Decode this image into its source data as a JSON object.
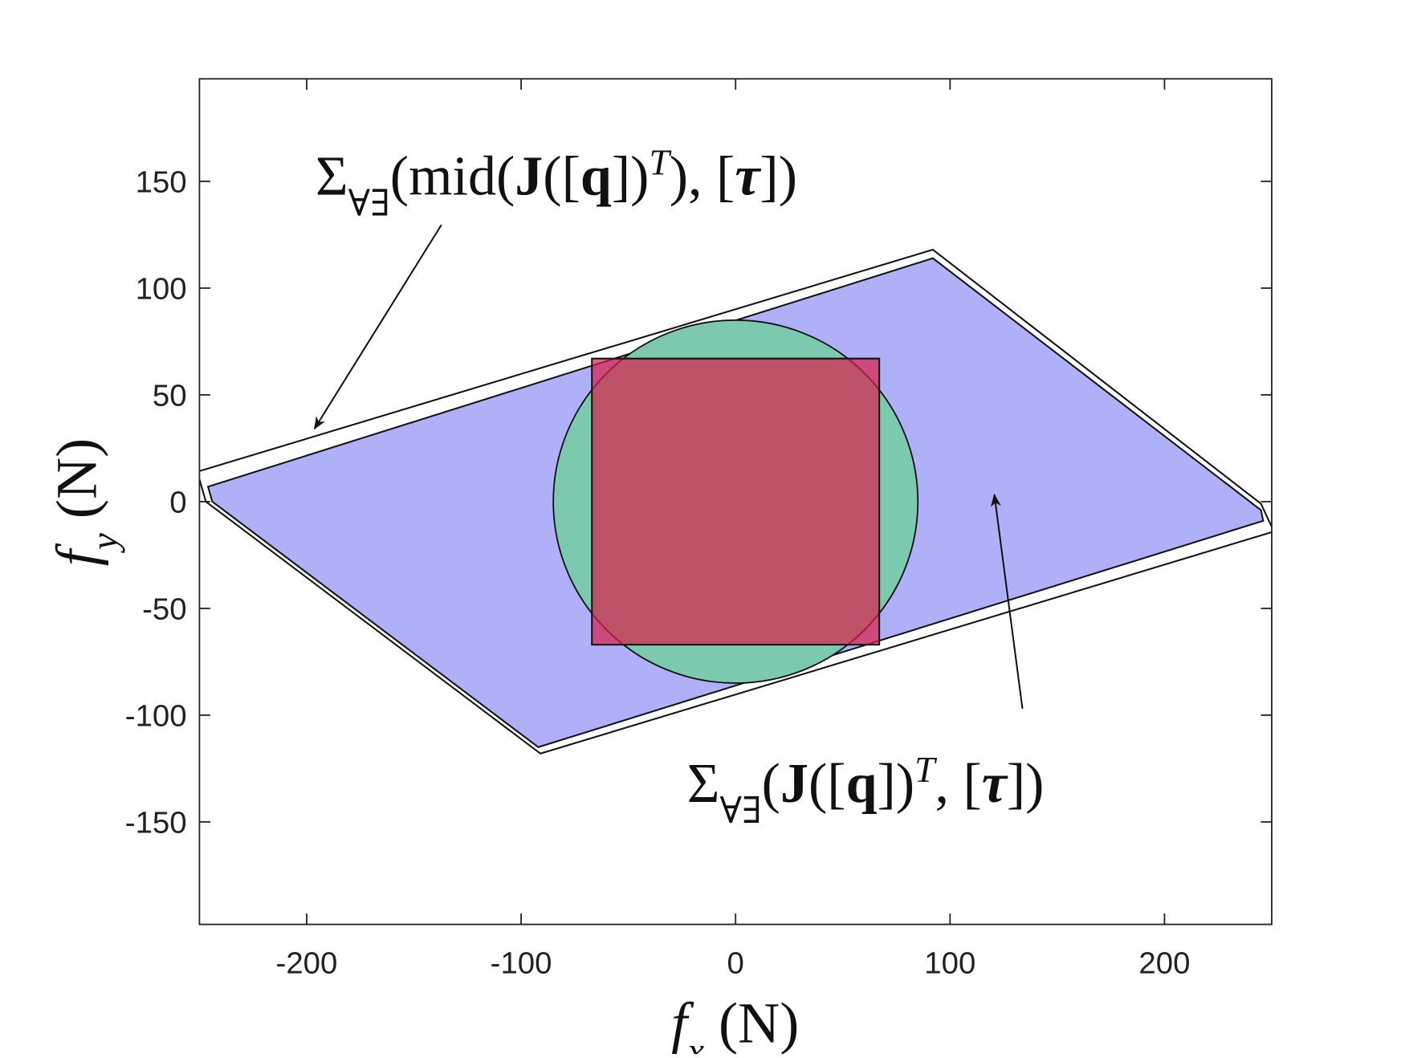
{
  "chart_data": {
    "type": "shapes",
    "xlim": [
      -250,
      250
    ],
    "ylim": [
      -198,
      198
    ],
    "xticks": [
      -200,
      -100,
      0,
      100,
      200
    ],
    "yticks": [
      -150,
      -100,
      -50,
      0,
      50,
      100,
      150
    ],
    "x_label": [
      {
        "text": "f",
        "style": "italic"
      },
      {
        "text": "x",
        "style": "italic-sub"
      },
      {
        "text": " (N)",
        "style": "normal"
      }
    ],
    "y_label": [
      {
        "text": "f",
        "style": "italic"
      },
      {
        "text": "y",
        "style": "italic-sub"
      },
      {
        "text": " (N)",
        "style": "normal"
      }
    ],
    "series": [
      {
        "shape": "polygon",
        "color": "#ffffff",
        "alpha": 1,
        "x": [
          92,
          245,
          251,
          -91,
          -247,
          -251
        ],
        "y": [
          118,
          -1,
          -14,
          -118,
          0,
          14
        ]
      },
      {
        "shape": "polygon",
        "color": "#b0b0f8",
        "alpha": 1,
        "x": [
          92,
          245,
          246,
          -92,
          -244,
          -246
        ],
        "y": [
          114,
          -4,
          -9,
          -115,
          0,
          7
        ]
      },
      {
        "shape": "circle",
        "color": "#7cc9b0",
        "alpha": 1,
        "cx": 0,
        "cy": 0,
        "r": 85
      },
      {
        "shape": "polygon",
        "color": "#d81e4a",
        "alpha": 0.7,
        "x": [
          -67,
          67,
          67,
          -67
        ],
        "y": [
          67,
          67,
          -67,
          -67
        ]
      }
    ],
    "annotations": [
      [
        {
          "text": "Σ",
          "style": "normal"
        },
        {
          "text": "∀∃",
          "style": "sub"
        },
        {
          "text": "(mid(",
          "style": "normal"
        },
        {
          "text": "J",
          "style": "bold"
        },
        {
          "text": "([",
          "style": "normal"
        },
        {
          "text": "q",
          "style": "bold"
        },
        {
          "text": "])",
          "style": "normal"
        },
        {
          "text": "T",
          "style": "italic-sup"
        },
        {
          "text": "), [",
          "style": "normal"
        },
        {
          "text": "τ",
          "style": "bold-italic"
        },
        {
          "text": "])",
          "style": "normal"
        }
      ],
      [
        {
          "text": "Σ",
          "style": "normal"
        },
        {
          "text": "∀∃",
          "style": "sub"
        },
        {
          "text": "(",
          "style": "normal"
        },
        {
          "text": "J",
          "style": "bold"
        },
        {
          "text": "([",
          "style": "normal"
        },
        {
          "text": "q",
          "style": "bold"
        },
        {
          "text": "])",
          "style": "normal"
        },
        {
          "text": "T",
          "style": "italic-sup"
        },
        {
          "text": ", [",
          "style": "normal"
        },
        {
          "text": "τ",
          "style": "bold-italic"
        },
        {
          "text": "])",
          "style": "normal"
        }
      ]
    ]
  }
}
